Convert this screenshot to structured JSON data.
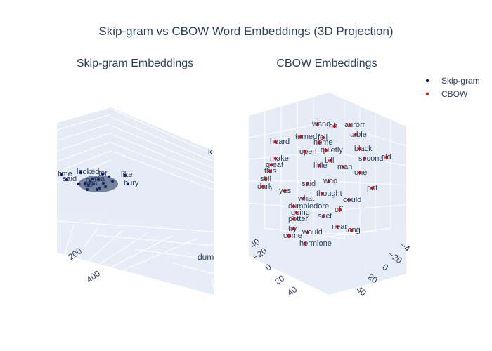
{
  "figure": {
    "title": "Skip-gram vs CBOW Word Embeddings (3D Projection)"
  },
  "legend": {
    "placement": "top-right",
    "items": [
      {
        "name": "Skip-gram",
        "color": "#00008b"
      },
      {
        "name": "CBOW",
        "color": "#ff0000"
      }
    ]
  },
  "chart_data": [
    {
      "type": "scatter",
      "title": "Skip-gram Embeddings",
      "series": [
        {
          "name": "Skip-gram",
          "color": "#00008b"
        }
      ],
      "visible_ticks": [
        "200",
        "400"
      ],
      "axis_label_fragments": [
        "k",
        "dum"
      ],
      "points": [
        {
          "label": "looked"
        },
        {
          "label": "time"
        },
        {
          "label": "said"
        },
        {
          "label": "tor"
        },
        {
          "label": "like"
        },
        {
          "label": "g"
        },
        {
          "label": "bury"
        },
        {
          "label": "ca"
        },
        {
          "label": "ed"
        },
        {
          "label": "ma"
        },
        {
          "label": ""
        },
        {
          "label": ""
        },
        {
          "label": ""
        },
        {
          "label": ""
        },
        {
          "label": ""
        },
        {
          "label": ""
        },
        {
          "label": ""
        },
        {
          "label": ""
        },
        {
          "label": ""
        },
        {
          "label": ""
        }
      ]
    },
    {
      "type": "scatter",
      "title": "CBOW Embeddings",
      "series": [
        {
          "name": "CBOW",
          "color": "#ff0000"
        }
      ],
      "visible_ticks": {
        "left_axis": [
          "40",
          "−20",
          "0",
          "20",
          "40"
        ],
        "right_axis": [
          "40",
          "20",
          "0",
          "−20",
          "−4"
        ]
      },
      "points": [
        {
          "label": "wand"
        },
        {
          "label": "eh"
        },
        {
          "label": "aurorr"
        },
        {
          "label": "table"
        },
        {
          "label": "turned"
        },
        {
          "label": "fell"
        },
        {
          "label": "heard"
        },
        {
          "label": "black"
        },
        {
          "label": "second"
        },
        {
          "label": "old"
        },
        {
          "label": "open"
        },
        {
          "label": "quietly"
        },
        {
          "label": "great"
        },
        {
          "label": "make"
        },
        {
          "label": "little"
        },
        {
          "label": "this"
        },
        {
          "label": "still"
        },
        {
          "label": "dark"
        },
        {
          "label": "yes"
        },
        {
          "label": "said"
        },
        {
          "label": "pot"
        },
        {
          "label": "thought"
        },
        {
          "label": "could"
        },
        {
          "label": "going"
        },
        {
          "label": "potter"
        },
        {
          "label": "try"
        },
        {
          "label": "come"
        },
        {
          "label": "would"
        },
        {
          "label": "near"
        },
        {
          "label": "hermione"
        },
        {
          "label": "sect"
        },
        {
          "label": "off"
        },
        {
          "label": "home"
        },
        {
          "label": "bill"
        },
        {
          "label": "man"
        },
        {
          "label": "one"
        },
        {
          "label": "what"
        },
        {
          "label": "dumbledore"
        },
        {
          "label": "long"
        },
        {
          "label": "who"
        }
      ]
    }
  ]
}
